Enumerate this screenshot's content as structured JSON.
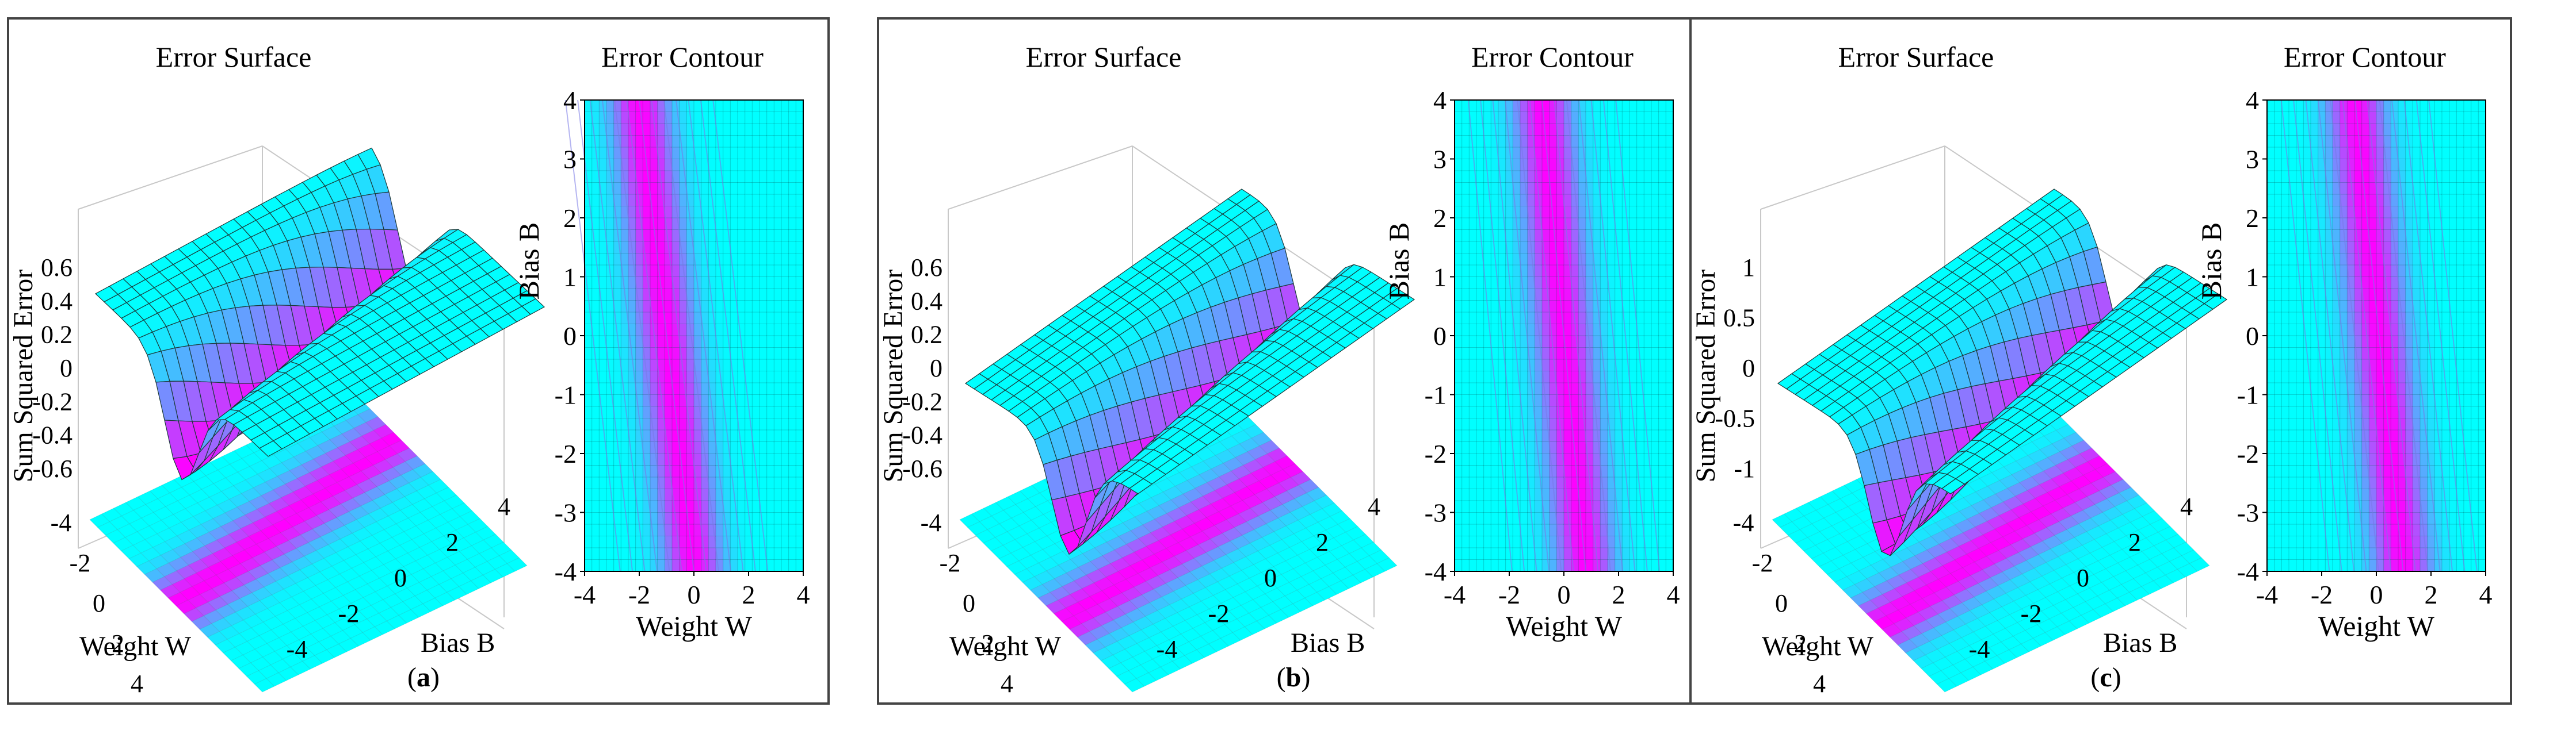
{
  "figure": {
    "panels": [
      {
        "label": "(a)",
        "label_parts": [
          "(",
          "a",
          ")"
        ],
        "surface_title": "Error Surface",
        "contour_title": "Error Contour"
      },
      {
        "label": "(b)",
        "label_parts": [
          "(",
          "b",
          ")"
        ],
        "surface_title": "Error Surface",
        "contour_title": "Error Contour"
      },
      {
        "label": "(c)",
        "label_parts": [
          "(",
          "c",
          ")"
        ],
        "surface_title": "Error Surface",
        "contour_title": "Error Contour"
      }
    ]
  },
  "chart_data": [
    {
      "type": "surface",
      "title": "Error Surface",
      "panel": "a",
      "xlabel": "Weight W",
      "ylabel": "Bias B",
      "zlabel": "Sum Squared Error",
      "x_ticks": [
        "-4",
        "-2",
        "0",
        "2",
        "4"
      ],
      "y_ticks": [
        "-4",
        "-2",
        "0",
        "2",
        "4"
      ],
      "z_ticks": [
        "0.6",
        "0.4",
        "0.2",
        "0",
        "-0.2",
        "-0.4",
        "-0.6"
      ],
      "xlim": [
        -4,
        4
      ],
      "ylim": [
        -4,
        4
      ],
      "zlim": [
        -0.7,
        0.7
      ],
      "valley_line": {
        "slope": -0.25,
        "intercept": -1.0
      },
      "colormap": [
        "#00ffff",
        "#ff00ff"
      ]
    },
    {
      "type": "contour",
      "title": "Error Contour",
      "panel": "a",
      "xlabel": "Weight W",
      "ylabel": "Bias B",
      "x_ticks": [
        "-4",
        "-2",
        "0",
        "2",
        "4"
      ],
      "y_ticks": [
        "4",
        "3",
        "2",
        "1",
        "0",
        "-1",
        "-2",
        "-3",
        "-4"
      ],
      "xlim": [
        -4,
        4
      ],
      "ylim": [
        -4,
        4
      ],
      "valley_line": {
        "slope": -0.25,
        "intercept": -1.0
      },
      "colormap": [
        "#00ffff",
        "#ff00ff"
      ]
    },
    {
      "type": "surface",
      "title": "Error Surface",
      "panel": "b",
      "xlabel": "Weight W",
      "ylabel": "Bias B",
      "zlabel": "Sum Squared Error",
      "x_ticks": [
        "-4",
        "-2",
        "0",
        "2",
        "4"
      ],
      "y_ticks": [
        "-4",
        "-2",
        "0",
        "2",
        "4"
      ],
      "z_ticks": [
        "0.6",
        "0.4",
        "0.2",
        "0",
        "-0.2",
        "-0.4",
        "-0.6"
      ],
      "xlim": [
        -4,
        4
      ],
      "ylim": [
        -4,
        4
      ],
      "zlim": [
        -0.7,
        0.7
      ],
      "valley_line": {
        "slope": -0.2,
        "intercept": 0.0
      },
      "colormap": [
        "#00ffff",
        "#ff00ff"
      ]
    },
    {
      "type": "contour",
      "title": "Error Contour",
      "panel": "b",
      "xlabel": "Weight W",
      "ylabel": "Bias B",
      "x_ticks": [
        "-4",
        "-2",
        "0",
        "2",
        "4"
      ],
      "y_ticks": [
        "4",
        "3",
        "2",
        "1",
        "0",
        "-1",
        "-2",
        "-3",
        "-4"
      ],
      "xlim": [
        -4,
        4
      ],
      "ylim": [
        -4,
        4
      ],
      "valley_line": {
        "slope": -0.2,
        "intercept": 0.0
      },
      "colormap": [
        "#00ffff",
        "#ff00ff"
      ]
    },
    {
      "type": "surface",
      "title": "Error Surface",
      "panel": "c",
      "xlabel": "Weight W",
      "ylabel": "Bias B",
      "zlabel": "Sum Squared Error",
      "x_ticks": [
        "-4",
        "-2",
        "0",
        "2",
        "4"
      ],
      "y_ticks": [
        "-4",
        "-2",
        "0",
        "2",
        "4"
      ],
      "z_ticks": [
        "1",
        "0.5",
        "0",
        "-0.5",
        "-1"
      ],
      "xlim": [
        -4,
        4
      ],
      "ylim": [
        -4,
        4
      ],
      "zlim": [
        -1.2,
        1.2
      ],
      "valley_line": {
        "slope": -0.22,
        "intercept": 0.1
      },
      "colormap": [
        "#00ffff",
        "#ff00ff"
      ]
    },
    {
      "type": "contour",
      "title": "Error Contour",
      "panel": "c",
      "xlabel": "Weight W",
      "ylabel": "Bias B",
      "x_ticks": [
        "-4",
        "-2",
        "0",
        "2",
        "4"
      ],
      "y_ticks": [
        "4",
        "3",
        "2",
        "1",
        "0",
        "-1",
        "-2",
        "-3",
        "-4"
      ],
      "xlim": [
        -4,
        4
      ],
      "ylim": [
        -4,
        4
      ],
      "valley_line": {
        "slope": -0.22,
        "intercept": 0.1
      },
      "colormap": [
        "#00ffff",
        "#ff00ff"
      ]
    }
  ]
}
